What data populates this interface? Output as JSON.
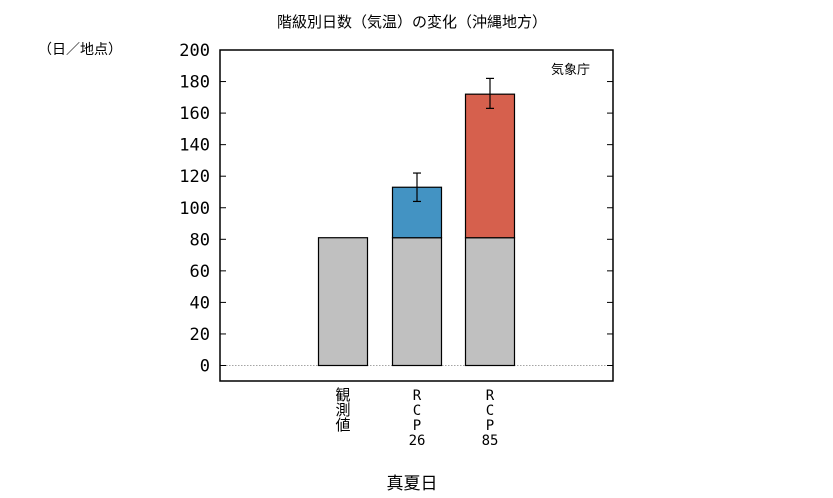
{
  "chart_data": {
    "type": "bar",
    "title": "階級別日数（気温）の変化（沖縄地方）",
    "ylabel": "（日／地点）",
    "xlabel": "真夏日",
    "watermark": "気象庁",
    "ylim": [
      -10,
      200
    ],
    "yticks": [
      0,
      20,
      40,
      60,
      80,
      100,
      120,
      140,
      160,
      180,
      200
    ],
    "categories": [
      "観測値",
      "RCP26",
      "RCP85"
    ],
    "category_labels": [
      [
        "観",
        "測",
        "値"
      ],
      [
        "R",
        "C",
        "P",
        "26"
      ],
      [
        "R",
        "C",
        "P",
        "85"
      ]
    ],
    "baseline_value": 81,
    "future_values": [
      null,
      113,
      172
    ],
    "error_bars": [
      null,
      [
        104,
        122
      ],
      [
        163,
        182
      ]
    ],
    "colors": {
      "base": "#c0c0c0",
      "rcp26": "#4393c3",
      "rcp85": "#d6604d",
      "axis": "#000000",
      "zero_line": "#888888"
    },
    "grid": false
  }
}
